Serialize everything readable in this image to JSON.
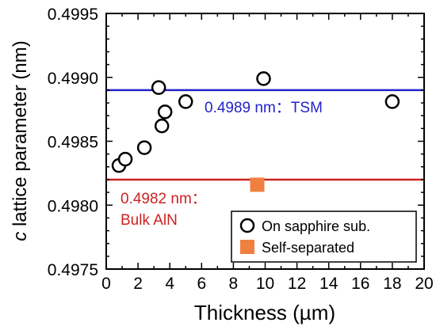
{
  "chart_data": {
    "type": "scatter",
    "xlabel": "Thickness (µm)",
    "ylabel_italic": "c",
    "ylabel_rest": " lattice parameter (nm)",
    "xlim": [
      0,
      20
    ],
    "ylim": [
      0.4975,
      0.4995
    ],
    "x_ticks": [
      "0",
      "2",
      "4",
      "6",
      "8",
      "10",
      "12",
      "14",
      "16",
      "18",
      "20"
    ],
    "y_ticks": [
      "0.4975",
      "0.4980",
      "0.4985",
      "0.4990",
      "0.4995"
    ],
    "grid": false,
    "legend_position": "bottom-right",
    "series": [
      {
        "name": "On sapphire sub.",
        "marker": "open-circle",
        "color": "#000000",
        "points": [
          {
            "x": 0.8,
            "y": 0.49831
          },
          {
            "x": 1.2,
            "y": 0.49836
          },
          {
            "x": 2.4,
            "y": 0.49845
          },
          {
            "x": 3.3,
            "y": 0.49892
          },
          {
            "x": 3.5,
            "y": 0.49862
          },
          {
            "x": 3.7,
            "y": 0.49873
          },
          {
            "x": 5.0,
            "y": 0.49881
          },
          {
            "x": 9.9,
            "y": 0.49899
          },
          {
            "x": 18.0,
            "y": 0.49881
          }
        ]
      },
      {
        "name": "Self-separated",
        "marker": "filled-square",
        "color": "#f08040",
        "points": [
          {
            "x": 9.5,
            "y": 0.49816
          }
        ]
      }
    ],
    "reference_lines": [
      {
        "y": 0.4989,
        "color": "#2222cc",
        "label_lines": [
          "0.4989 nm：TSM"
        ]
      },
      {
        "y": 0.4982,
        "color": "#cc2222",
        "label_lines": [
          "0.4982 nm：",
          "Bulk AlN"
        ]
      }
    ]
  }
}
